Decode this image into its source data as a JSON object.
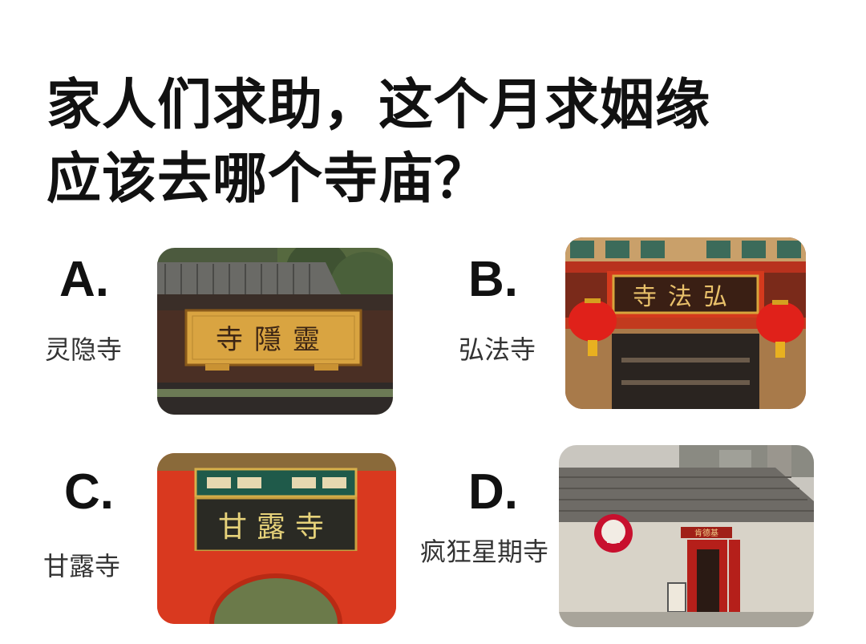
{
  "title": {
    "line1": "家人们求助，这个月求姻缘",
    "line2": "应该去哪个寺庙？"
  },
  "options": [
    {
      "letter": "A.",
      "caption": "灵隐寺",
      "sign": "寺隱靈"
    },
    {
      "letter": "B.",
      "caption": "弘法寺",
      "sign": "寺法弘"
    },
    {
      "letter": "C.",
      "caption": "甘露寺",
      "sign": "甘露寺"
    },
    {
      "letter": "D.",
      "caption": "疯狂星期寺",
      "sign": "肯德基"
    }
  ],
  "colors": {
    "gold_plaque": "#d9a441",
    "temple_red": "#d9391f",
    "lantern_red": "#e0211a",
    "kfc_red": "#c8102e"
  }
}
